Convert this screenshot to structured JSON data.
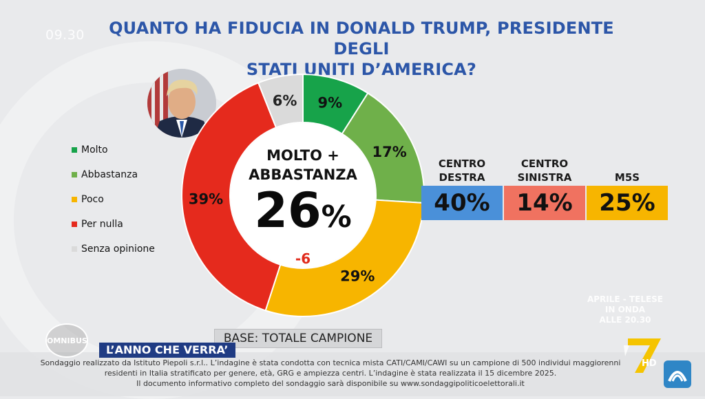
{
  "header": {
    "clock": "09.30",
    "title_line1": "QUANTO HA FIDUCIA IN DONALD TRUMP, PRESIDENTE DEGLI",
    "title_line2": "STATI UNITI D’AMERICA?"
  },
  "chart_data": {
    "type": "pie",
    "style": "donut",
    "categories": [
      "Molto",
      "Abbastanza",
      "Poco",
      "Per nulla",
      "Senza opinione"
    ],
    "values": [
      9,
      17,
      29,
      39,
      6
    ],
    "value_labels": [
      "9%",
      "17%",
      "29%",
      "39%",
      "6%"
    ],
    "colors": [
      "#17a34a",
      "#6fb04a",
      "#f7b500",
      "#e52a1d",
      "#dadada"
    ],
    "legend_position": "left",
    "center": {
      "label_line1": "MOLTO +",
      "label_line2": "ABBASTANZA",
      "value": "26",
      "unit": "%",
      "delta": "-6"
    }
  },
  "party_breakdown": [
    {
      "name_line1": "CENTRO",
      "name_line2": "DESTRA",
      "value": "40%",
      "color": "#4a90d9"
    },
    {
      "name_line1": "CENTRO",
      "name_line2": "SINISTRA",
      "value": "14%",
      "color": "#f07260"
    },
    {
      "name_line1": "",
      "name_line2": "M5S",
      "value": "25%",
      "color": "#f7b500"
    }
  ],
  "base_label": "BASE: TOTALE CAMPIONE",
  "show_tag": "L’ANNO CHE VERRA’",
  "footnote": [
    "Sondaggio realizzato da Istituto Piepoli s.r.l.. L’indagine è stata condotta con tecnica mista CATI/CAMI/CAWI su un campione di 500 individui maggiorenni",
    "residenti in Italia stratificato per genere, età, GRG e ampiezza centri. L’indagine è stata realizzata il 15 dicembre 2025.",
    "Il documento informativo completo del sondaggio sarà disponibile su www.sondaggipoliticoelettorali.it"
  ],
  "promo": {
    "line1": "APRILE - TELESE",
    "line2": "IN ONDA",
    "line3": "ALLE 20.30"
  },
  "logos": {
    "omnibus": "OMNIBUS",
    "hd": "HD"
  },
  "icons": [
    "omnibus-logo-icon",
    "la7-logo-icon",
    "channel-logo-icon",
    "portrait-photo"
  ]
}
